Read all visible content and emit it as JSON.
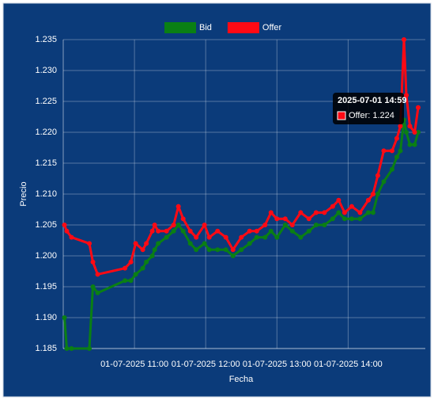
{
  "chart_data": {
    "type": "line",
    "xlabel": "Fecha",
    "ylabel": "Precio",
    "x": [
      "2025-07-01 10:01",
      "2025-07-01 10:03",
      "2025-07-01 10:07",
      "2025-07-01 10:22",
      "2025-07-01 10:25",
      "2025-07-01 10:29",
      "2025-07-01 10:52",
      "2025-07-01 10:57",
      "2025-07-01 11:01",
      "2025-07-01 11:07",
      "2025-07-01 11:10",
      "2025-07-01 11:15",
      "2025-07-01 11:17",
      "2025-07-01 11:20",
      "2025-07-01 11:27",
      "2025-07-01 11:33",
      "2025-07-01 11:37",
      "2025-07-01 11:41",
      "2025-07-01 11:47",
      "2025-07-01 11:52",
      "2025-07-01 11:59",
      "2025-07-01 12:03",
      "2025-07-01 12:10",
      "2025-07-01 12:17",
      "2025-07-01 12:23",
      "2025-07-01 12:30",
      "2025-07-01 12:37",
      "2025-07-01 12:43",
      "2025-07-01 12:50",
      "2025-07-01 12:55",
      "2025-07-01 13:00",
      "2025-07-01 13:07",
      "2025-07-01 13:13",
      "2025-07-01 13:20",
      "2025-07-01 13:27",
      "2025-07-01 13:33",
      "2025-07-01 13:40",
      "2025-07-01 13:47",
      "2025-07-01 13:52",
      "2025-07-01 13:57",
      "2025-07-01 14:03",
      "2025-07-01 14:10",
      "2025-07-01 14:17",
      "2025-07-01 14:21",
      "2025-07-01 14:25",
      "2025-07-01 14:30",
      "2025-07-01 14:37",
      "2025-07-01 14:41",
      "2025-07-01 14:44",
      "2025-07-01 14:47",
      "2025-07-01 14:49",
      "2025-07-01 14:52",
      "2025-07-01 14:56",
      "2025-07-01 14:59"
    ],
    "series": [
      {
        "name": "Bid",
        "color": "#0a7f14",
        "values": [
          1.19,
          1.185,
          1.185,
          1.185,
          1.195,
          1.194,
          1.196,
          1.196,
          1.197,
          1.198,
          1.199,
          1.2,
          1.201,
          1.202,
          1.203,
          1.204,
          1.205,
          1.204,
          1.202,
          1.201,
          1.202,
          1.201,
          1.201,
          1.201,
          1.2,
          1.201,
          1.202,
          1.203,
          1.203,
          1.204,
          1.203,
          1.205,
          1.204,
          1.203,
          1.204,
          1.205,
          1.205,
          1.206,
          1.207,
          1.206,
          1.206,
          1.206,
          1.207,
          1.207,
          1.21,
          1.212,
          1.214,
          1.216,
          1.217,
          1.222,
          1.22,
          1.218,
          1.218,
          1.22
        ]
      },
      {
        "name": "Offer",
        "color": "#ff0a14",
        "values": [
          1.205,
          1.204,
          1.203,
          1.202,
          1.199,
          1.197,
          1.198,
          1.199,
          1.202,
          1.201,
          1.202,
          1.204,
          1.205,
          1.204,
          1.204,
          1.205,
          1.208,
          1.206,
          1.204,
          1.203,
          1.205,
          1.203,
          1.204,
          1.203,
          1.201,
          1.203,
          1.204,
          1.204,
          1.205,
          1.207,
          1.206,
          1.206,
          1.205,
          1.207,
          1.206,
          1.207,
          1.207,
          1.208,
          1.209,
          1.207,
          1.208,
          1.207,
          1.209,
          1.21,
          1.213,
          1.217,
          1.217,
          1.219,
          1.221,
          1.235,
          1.226,
          1.221,
          1.22,
          1.224
        ]
      }
    ],
    "xlim": [
      "2025-07-01 10:00",
      "2025-07-01 15:05"
    ],
    "xticks": [
      {
        "value": "2025-07-01 11:00",
        "label": "01-07-2025 11:00"
      },
      {
        "value": "2025-07-01 12:00",
        "label": "01-07-2025 12:00"
      },
      {
        "value": "2025-07-01 13:00",
        "label": "01-07-2025 13:00"
      },
      {
        "value": "2025-07-01 14:00",
        "label": "01-07-2025 14:00"
      }
    ],
    "ylim": [
      1.185,
      1.235
    ],
    "yticks": [
      1.185,
      {
        "value": 1.19,
        "label": "1.190"
      },
      1.195,
      {
        "value": 1.2,
        "label": "1.200"
      },
      1.205,
      {
        "value": 1.21,
        "label": "1.210"
      },
      1.215,
      {
        "value": 1.22,
        "label": "1.220"
      },
      1.225,
      {
        "value": 1.23,
        "label": "1.230"
      },
      1.235
    ],
    "grid": true,
    "legend": "top",
    "tooltip": {
      "title": "2025-07-01 14:59",
      "label": "Offer: 1.224"
    }
  }
}
